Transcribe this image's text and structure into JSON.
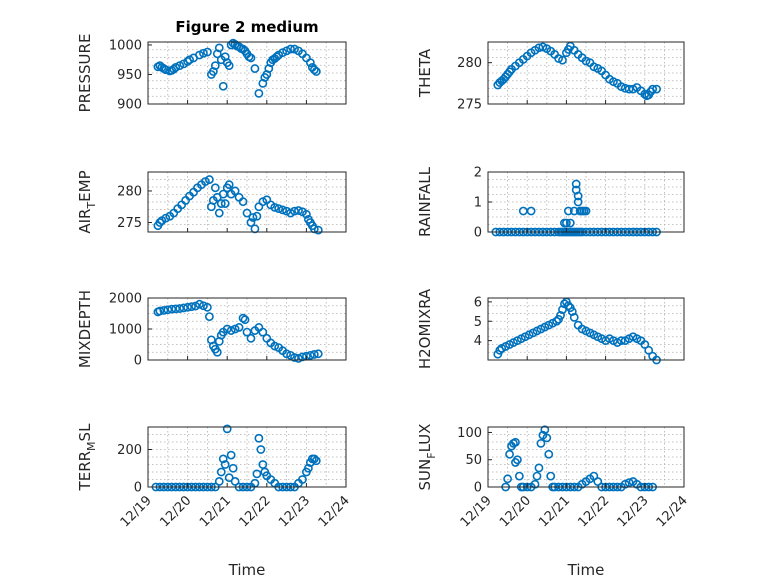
{
  "figure_title": "Figure 2 medium",
  "colors": {
    "marker": "#0072BD",
    "axis": "#262626",
    "grid": "#b0b0b0"
  },
  "chart_data": [
    {
      "type": "scatter",
      "title": "Figure 2 medium",
      "ylabel": "PRESSURE",
      "xlabel": "",
      "ylim": [
        900,
        1005
      ],
      "yticks": [
        900,
        950,
        1000
      ],
      "x": [
        0.25,
        0.3,
        0.35,
        0.4,
        0.45,
        0.55,
        0.6,
        0.65,
        0.7,
        0.8,
        0.9,
        1.0,
        1.05,
        1.15,
        1.3,
        1.4,
        1.5,
        1.6,
        1.65,
        1.7,
        1.75,
        1.8,
        1.85,
        1.9,
        1.95,
        2.0,
        2.05,
        2.1,
        2.15,
        2.2,
        2.25,
        2.3,
        2.35,
        2.4,
        2.45,
        2.5,
        2.55,
        2.6,
        2.7,
        2.8,
        2.9,
        2.95,
        3.0,
        3.05,
        3.1,
        3.15,
        3.2,
        3.25,
        3.3,
        3.4,
        3.5,
        3.6,
        3.7,
        3.8,
        3.9,
        4.0,
        4.1,
        4.15,
        4.2,
        4.25
      ],
      "y": [
        963,
        965,
        962,
        960,
        958,
        956,
        957,
        959,
        962,
        965,
        968,
        972,
        975,
        978,
        983,
        986,
        988,
        950,
        955,
        965,
        985,
        995,
        975,
        930,
        980,
        970,
        965,
        1000,
        1003,
        1001,
        998,
        997,
        994,
        993,
        990,
        985,
        980,
        978,
        960,
        918,
        935,
        945,
        950,
        960,
        970,
        975,
        977,
        980,
        983,
        987,
        990,
        993,
        993,
        990,
        985,
        978,
        970,
        962,
        958,
        955
      ]
    },
    {
      "type": "scatter",
      "ylabel": "THETA",
      "xlabel": "",
      "ylim": [
        275,
        282.5
      ],
      "yticks": [
        275,
        280
      ],
      "x": [
        0.25,
        0.3,
        0.35,
        0.4,
        0.45,
        0.5,
        0.55,
        0.6,
        0.7,
        0.8,
        0.9,
        1.0,
        1.1,
        1.2,
        1.3,
        1.4,
        1.5,
        1.6,
        1.7,
        1.8,
        1.9,
        2.0,
        2.05,
        2.1,
        2.2,
        2.3,
        2.4,
        2.5,
        2.6,
        2.7,
        2.8,
        2.9,
        3.0,
        3.1,
        3.2,
        3.3,
        3.4,
        3.5,
        3.6,
        3.7,
        3.8,
        3.9,
        4.0,
        4.05,
        4.1,
        4.15,
        4.2,
        4.3
      ],
      "y": [
        277.3,
        277.6,
        277.8,
        278.0,
        278.3,
        278.6,
        278.9,
        279.2,
        279.6,
        280.0,
        280.4,
        280.8,
        281.2,
        281.5,
        281.8,
        281.9,
        281.7,
        281.4,
        281.0,
        280.5,
        280.3,
        281.2,
        281.6,
        282.0,
        281.5,
        281.0,
        280.6,
        280.2,
        280.0,
        279.5,
        279.3,
        279.0,
        278.5,
        278.0,
        277.7,
        277.5,
        277.1,
        276.9,
        276.8,
        276.8,
        277.0,
        276.6,
        276.2,
        276.0,
        276.1,
        276.5,
        276.8,
        276.8
      ]
    },
    {
      "type": "scatter",
      "ylabel": "AIR_TEMP",
      "xlabel": "",
      "ylim": [
        273.5,
        283
      ],
      "yticks": [
        275,
        280
      ],
      "x": [
        0.25,
        0.3,
        0.35,
        0.45,
        0.55,
        0.65,
        0.75,
        0.85,
        0.95,
        1.05,
        1.15,
        1.25,
        1.35,
        1.45,
        1.55,
        1.6,
        1.65,
        1.7,
        1.75,
        1.8,
        1.85,
        1.9,
        1.95,
        2.0,
        2.05,
        2.1,
        2.2,
        2.3,
        2.4,
        2.5,
        2.6,
        2.65,
        2.7,
        2.75,
        2.8,
        2.9,
        3.0,
        3.1,
        3.2,
        3.3,
        3.4,
        3.5,
        3.6,
        3.7,
        3.8,
        3.9,
        4.0,
        4.05,
        4.1,
        4.15,
        4.2,
        4.3
      ],
      "y": [
        274.5,
        275.0,
        275.3,
        275.7,
        276.0,
        276.5,
        277.2,
        277.8,
        278.5,
        279.2,
        279.8,
        280.5,
        281.0,
        281.5,
        281.8,
        277.5,
        278.5,
        280.5,
        279.0,
        276.5,
        278.0,
        279.5,
        278.0,
        280.5,
        281.0,
        279.5,
        280.0,
        279.0,
        278.3,
        276.5,
        275.0,
        275.8,
        274.0,
        276.0,
        277.5,
        278.3,
        278.6,
        277.8,
        277.4,
        277.2,
        277.0,
        276.8,
        276.5,
        276.8,
        276.9,
        276.7,
        276.3,
        275.5,
        275.0,
        274.5,
        274.0,
        273.8
      ]
    },
    {
      "type": "scatter",
      "ylabel": "RAINFALL",
      "xlabel": "",
      "ylim": [
        0,
        2
      ],
      "yticks": [
        0,
        1,
        2
      ],
      "x": [
        0.2,
        0.3,
        0.4,
        0.5,
        0.6,
        0.7,
        0.8,
        0.9,
        1.0,
        1.1,
        1.2,
        1.3,
        1.4,
        1.5,
        1.6,
        1.7,
        1.8,
        1.85,
        1.9,
        1.95,
        2.0,
        2.05,
        2.1,
        2.15,
        2.2,
        2.25,
        2.3,
        2.35,
        2.4,
        2.5,
        2.6,
        2.7,
        2.8,
        2.9,
        3.0,
        3.1,
        3.2,
        3.3,
        3.4,
        3.5,
        3.6,
        3.7,
        3.8,
        3.9,
        4.0,
        4.1,
        4.2,
        4.3,
        0.9,
        1.1,
        1.95,
        2.0,
        2.05,
        2.1,
        2.2,
        2.25,
        2.25,
        2.3,
        2.3,
        2.35,
        2.4,
        2.45,
        2.5
      ],
      "y": [
        0,
        0,
        0,
        0,
        0,
        0,
        0,
        0,
        0,
        0,
        0,
        0,
        0,
        0,
        0,
        0,
        0,
        0,
        0,
        0,
        0,
        0,
        0,
        0,
        0,
        0,
        0,
        0,
        0,
        0,
        0,
        0,
        0,
        0,
        0,
        0,
        0,
        0,
        0,
        0,
        0,
        0,
        0,
        0,
        0,
        0,
        0,
        0,
        0.7,
        0.7,
        0.3,
        0.3,
        0.7,
        0.3,
        0.7,
        1.6,
        1.4,
        1.2,
        1.0,
        0.7,
        0.7,
        0.7,
        0.7
      ]
    },
    {
      "type": "scatter",
      "ylabel": "MIXDEPTH",
      "xlabel": "",
      "ylim": [
        0,
        2000
      ],
      "yticks": [
        0,
        1000,
        2000
      ],
      "x": [
        0.25,
        0.3,
        0.4,
        0.5,
        0.6,
        0.7,
        0.8,
        0.9,
        1.0,
        1.1,
        1.2,
        1.3,
        1.4,
        1.5,
        1.55,
        1.6,
        1.65,
        1.7,
        1.75,
        1.8,
        1.85,
        1.9,
        2.0,
        2.1,
        2.2,
        2.3,
        2.4,
        2.45,
        2.5,
        2.6,
        2.7,
        2.8,
        2.9,
        3.0,
        3.1,
        3.2,
        3.3,
        3.4,
        3.5,
        3.6,
        3.7,
        3.8,
        3.9,
        4.0,
        4.1,
        4.2,
        4.3
      ],
      "y": [
        1550,
        1580,
        1600,
        1620,
        1640,
        1650,
        1660,
        1680,
        1700,
        1720,
        1740,
        1800,
        1750,
        1700,
        1400,
        650,
        450,
        350,
        250,
        600,
        800,
        900,
        1000,
        950,
        1000,
        1050,
        1350,
        1300,
        900,
        700,
        950,
        1050,
        900,
        700,
        550,
        450,
        400,
        300,
        200,
        150,
        80,
        50,
        100,
        120,
        150,
        180,
        200
      ]
    },
    {
      "type": "scatter",
      "ylabel": "H2OMIXRA",
      "xlabel": "",
      "ylim": [
        3,
        6.2
      ],
      "yticks": [
        4,
        5,
        6
      ],
      "x": [
        0.25,
        0.3,
        0.35,
        0.45,
        0.55,
        0.65,
        0.75,
        0.85,
        0.95,
        1.05,
        1.15,
        1.25,
        1.35,
        1.45,
        1.55,
        1.65,
        1.75,
        1.8,
        1.85,
        1.9,
        1.95,
        2.0,
        2.05,
        2.1,
        2.15,
        2.2,
        2.3,
        2.4,
        2.5,
        2.6,
        2.7,
        2.8,
        2.9,
        3.0,
        3.1,
        3.2,
        3.3,
        3.4,
        3.5,
        3.6,
        3.7,
        3.8,
        3.9,
        4.0,
        4.1,
        4.2,
        4.3
      ],
      "y": [
        3.3,
        3.5,
        3.6,
        3.7,
        3.8,
        3.9,
        4.0,
        4.1,
        4.2,
        4.3,
        4.4,
        4.5,
        4.6,
        4.7,
        4.8,
        4.9,
        5.0,
        5.1,
        5.3,
        5.6,
        5.9,
        6.0,
        5.8,
        5.7,
        5.5,
        5.2,
        4.8,
        4.6,
        4.5,
        4.4,
        4.3,
        4.2,
        4.1,
        4.0,
        4.1,
        4.0,
        3.9,
        4.0,
        4.0,
        4.1,
        4.2,
        4.1,
        4.0,
        3.8,
        3.5,
        3.2,
        3.0
      ]
    },
    {
      "type": "scatter",
      "ylabel": "TERR_MSL",
      "xlabel": "Time",
      "ylim": [
        0,
        320
      ],
      "yticks": [
        0,
        200
      ],
      "xticks": [
        "12/19",
        "12/20",
        "12/21",
        "12/22",
        "12/23",
        "12/24"
      ],
      "x": [
        0.2,
        0.3,
        0.4,
        0.5,
        0.6,
        0.7,
        0.8,
        0.9,
        1.0,
        1.1,
        1.2,
        1.3,
        1.4,
        1.5,
        1.6,
        1.7,
        1.8,
        1.85,
        1.9,
        1.95,
        2.0,
        2.05,
        2.1,
        2.15,
        2.2,
        2.3,
        2.4,
        2.5,
        2.6,
        2.7,
        2.75,
        2.8,
        2.85,
        2.9,
        2.95,
        3.0,
        3.1,
        3.2,
        3.3,
        3.4,
        3.5,
        3.6,
        3.7,
        3.8,
        3.9,
        4.0,
        4.05,
        4.1,
        4.15,
        4.2,
        4.25
      ],
      "y": [
        0,
        0,
        0,
        0,
        0,
        0,
        0,
        0,
        0,
        0,
        0,
        0,
        0,
        0,
        0,
        0,
        30,
        80,
        150,
        120,
        310,
        50,
        170,
        100,
        30,
        0,
        0,
        0,
        0,
        20,
        70,
        260,
        200,
        120,
        80,
        60,
        40,
        20,
        0,
        0,
        0,
        0,
        0,
        20,
        40,
        80,
        100,
        130,
        150,
        150,
        140
      ]
    },
    {
      "type": "scatter",
      "ylabel": "SUN_FLUX",
      "xlabel": "Time",
      "ylim": [
        0,
        110
      ],
      "yticks": [
        0,
        50,
        100
      ],
      "xticks": [
        "12/19",
        "12/20",
        "12/21",
        "12/22",
        "12/23",
        "12/24"
      ],
      "x": [
        0.5,
        0.55,
        0.6,
        0.65,
        0.7,
        0.75,
        0.8,
        0.85,
        0.9,
        1.0,
        1.1,
        1.2,
        1.25,
        1.3,
        1.35,
        1.4,
        1.45,
        1.5,
        1.55,
        1.6,
        1.65,
        1.7,
        1.8,
        1.9,
        2.0,
        2.1,
        2.2,
        2.3,
        2.4,
        2.5,
        2.6,
        2.7,
        2.8,
        2.9,
        3.0,
        3.1,
        3.2,
        3.3,
        3.4,
        3.5,
        3.6,
        3.7,
        3.8,
        3.9,
        4.0,
        4.1,
        4.2,
        0.45,
        0.7
      ],
      "y": [
        15,
        60,
        75,
        80,
        82,
        50,
        20,
        0,
        0,
        0,
        0,
        5,
        20,
        35,
        80,
        95,
        105,
        90,
        60,
        20,
        0,
        0,
        0,
        0,
        0,
        0,
        0,
        0,
        5,
        10,
        15,
        20,
        10,
        0,
        0,
        0,
        0,
        0,
        0,
        5,
        8,
        10,
        5,
        0,
        0,
        0,
        0,
        0,
        45
      ]
    }
  ]
}
